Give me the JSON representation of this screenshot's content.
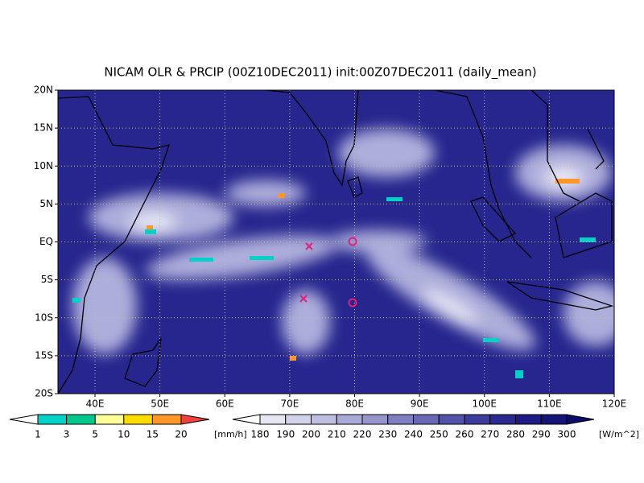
{
  "title": "NICAM OLR & PRCIP (00Z10DEC2011) init:00Z07DEC2011 (daily_mean)",
  "map": {
    "lon_labels": [
      "40E",
      "50E",
      "60E",
      "70E",
      "80E",
      "90E",
      "100E",
      "110E",
      "120E"
    ],
    "lat_labels": [
      "20N",
      "15N",
      "10N",
      "5N",
      "EQ",
      "5S",
      "10S",
      "15S",
      "20S"
    ]
  },
  "precip_bar": {
    "levels": [
      "1",
      "3",
      "5",
      "10",
      "15",
      "20"
    ],
    "unit": "[mm/h]",
    "colors": [
      "#ffffff",
      "#00d2c8",
      "#00c88c",
      "#ffff9a",
      "#ffdc00",
      "#ff9628",
      "#f04040"
    ]
  },
  "olr_bar": {
    "levels": [
      "180",
      "190",
      "200",
      "210",
      "220",
      "230",
      "240",
      "250",
      "260",
      "270",
      "280",
      "290",
      "300"
    ],
    "unit": "[W/m^2]",
    "colors": [
      "#ffffff",
      "#e6e6f2",
      "#d2d2ea",
      "#bebee2",
      "#aaaad8",
      "#9696cc",
      "#7e7ec0",
      "#6868b4",
      "#5252a8",
      "#3c3c9c",
      "#2a2a90",
      "#1c1c84",
      "#141478",
      "#0c0c6a"
    ]
  }
}
